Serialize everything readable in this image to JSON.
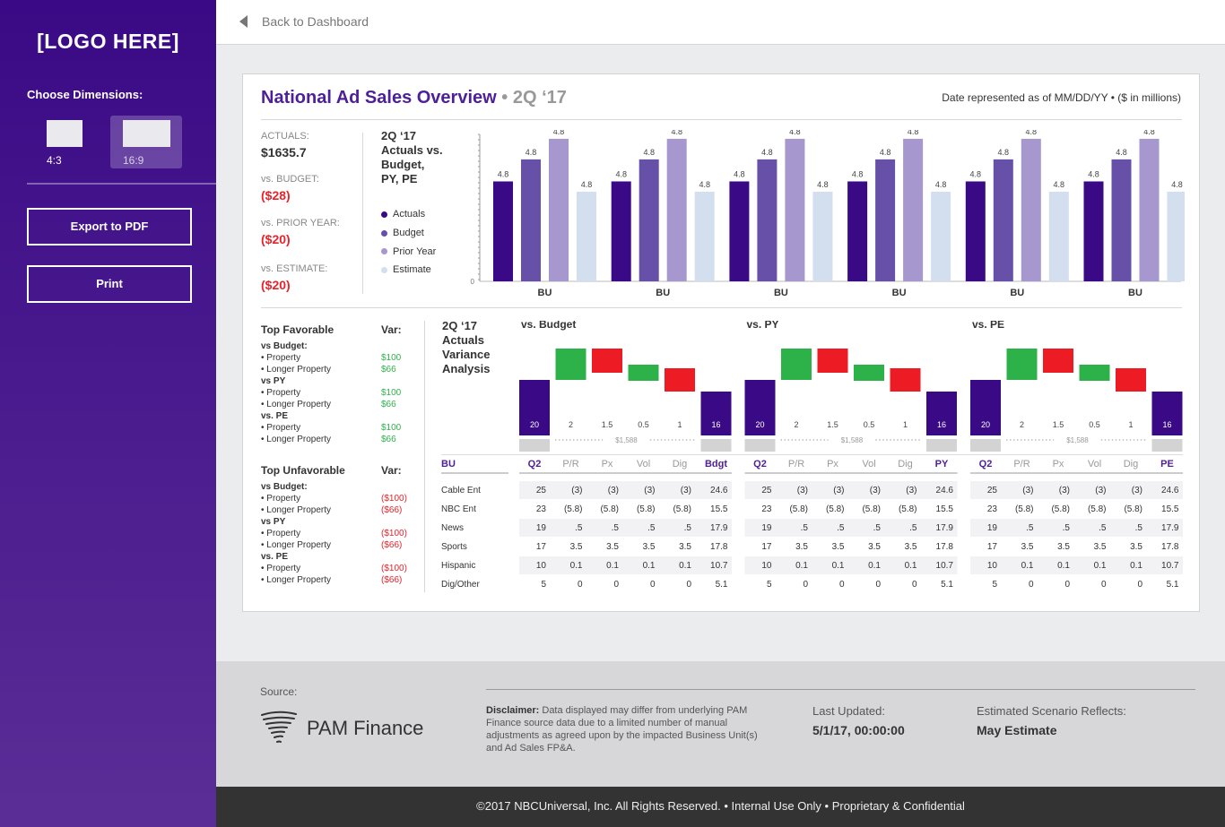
{
  "sidebar": {
    "logo": "[LOGO HERE]",
    "dimensions_label": "Choose Dimensions:",
    "options": [
      {
        "label": "4:3"
      },
      {
        "label": "16:9",
        "selected": true
      }
    ],
    "export_label": "Export to PDF",
    "print_label": "Print"
  },
  "topbar": {
    "back_label": "Back to Dashboard"
  },
  "card": {
    "title": "National Ad Sales Overview",
    "title_separator": " • ",
    "period": "2Q ‘17",
    "date_note": "Date represented as of MM/DD/YY • ($ in millions)",
    "kpis": [
      {
        "label": "ACTUALS:",
        "value": "$1635.7"
      },
      {
        "label": "vs. BUDGET:",
        "value": "($28)"
      },
      {
        "label": "vs. PRIOR YEAR:",
        "value": "($20)"
      },
      {
        "label": "vs. ESTIMATE:",
        "value": "($20)"
      }
    ],
    "chart_title_lines": [
      "2Q ‘17",
      "Actuals vs.",
      "Budget,",
      "PY, PE"
    ],
    "legend": [
      {
        "name": "Actuals",
        "color": "#3a0a86"
      },
      {
        "name": "Budget",
        "color": "#6650a8"
      },
      {
        "name": "Prior Year",
        "color": "#a697cf"
      },
      {
        "name": "Estimate",
        "color": "#d3deee"
      }
    ]
  },
  "chart_data": {
    "type": "bar",
    "categories": [
      "BU",
      "BU",
      "BU",
      "BU",
      "BU",
      "BU"
    ],
    "series": [
      {
        "name": "Actuals",
        "values": [
          4.8,
          4.8,
          4.8,
          4.8,
          4.8,
          4.8
        ]
      },
      {
        "name": "Budget",
        "values": [
          4.8,
          4.8,
          4.8,
          4.8,
          4.8,
          4.8
        ]
      },
      {
        "name": "Prior Year",
        "values": [
          4.8,
          4.8,
          4.8,
          4.8,
          4.8,
          4.8
        ]
      },
      {
        "name": "Estimate",
        "values": [
          4.8,
          4.8,
          4.8,
          4.8,
          4.8,
          4.8
        ]
      }
    ],
    "relative_heights": [
      0.68,
      0.83,
      0.97,
      0.61
    ],
    "y_tick_label": "0",
    "data_label": "4.8",
    "colors": [
      "#3a0a86",
      "#6650a8",
      "#a697cf",
      "#d3deee"
    ]
  },
  "lists": {
    "favorable_title": "Top Favorable",
    "unfavorable_title": "Top Unfavorable",
    "var_label": "Var:",
    "favorable": [
      {
        "group": "vs Budget:",
        "items": [
          {
            "name": "• Property",
            "value": "$100"
          },
          {
            "name": "• Longer Property",
            "value": "$66"
          }
        ]
      },
      {
        "group": "vs PY",
        "items": [
          {
            "name": "• Property",
            "value": "$100"
          },
          {
            "name": "• Longer Property",
            "value": "$66"
          }
        ]
      },
      {
        "group": "vs. PE",
        "items": [
          {
            "name": "• Property",
            "value": "$100"
          },
          {
            "name": "• Longer Property",
            "value": "$66"
          }
        ]
      }
    ],
    "unfavorable": [
      {
        "group": "vs Budget:",
        "items": [
          {
            "name": "• Property",
            "value": "($100)"
          },
          {
            "name": "• Longer Property",
            "value": "($66)"
          }
        ]
      },
      {
        "group": "vs PY",
        "items": [
          {
            "name": "• Property",
            "value": "($100)"
          },
          {
            "name": "• Longer Property",
            "value": "($66)"
          }
        ]
      },
      {
        "group": "vs. PE",
        "items": [
          {
            "name": "• Property",
            "value": "($100)"
          },
          {
            "name": "• Longer Property",
            "value": "($66)"
          }
        ]
      }
    ]
  },
  "variance": {
    "title_lines": [
      "2Q ‘17",
      "Actuals",
      "Variance",
      "Analysis"
    ],
    "baseline_label": "$1,588",
    "panels": [
      {
        "title": "vs. Budget",
        "end_col": "Bdgt"
      },
      {
        "title": "vs. PY",
        "end_col": "PY"
      },
      {
        "title": "vs. PE",
        "end_col": "PE"
      }
    ],
    "bar_labels": [
      "20",
      "2",
      "1.5",
      "0.5",
      "1",
      "16"
    ],
    "waterfall_values": [
      20,
      2,
      1.5,
      -0.5,
      -1,
      16
    ],
    "columns": [
      "Q2",
      "P/R",
      "Px",
      "Vol",
      "Dig"
    ],
    "bu_header": "BU",
    "rows": [
      {
        "bu": "Cable Ent",
        "cells": [
          "25",
          "(3)",
          "(3)",
          "(3)",
          "(3)",
          "24.6"
        ]
      },
      {
        "bu": "NBC Ent",
        "cells": [
          "23",
          "(5.8)",
          "(5.8)",
          "(5.8)",
          "(5.8)",
          "15.5"
        ]
      },
      {
        "bu": "News",
        "cells": [
          "19",
          ".5",
          ".5",
          ".5",
          ".5",
          "17.9"
        ]
      },
      {
        "bu": "Sports",
        "cells": [
          "17",
          "3.5",
          "3.5",
          "3.5",
          "3.5",
          "17.8"
        ]
      },
      {
        "bu": "Hispanic",
        "cells": [
          "10",
          "0.1",
          "0.1",
          "0.1",
          "0.1",
          "10.7"
        ]
      },
      {
        "bu": "Dig/Other",
        "cells": [
          "5",
          "0",
          "0",
          "0",
          "0",
          "5.1"
        ]
      }
    ],
    "colors": {
      "total": "#3a0a86",
      "up": "#2db24a",
      "down": "#ed1c24"
    }
  },
  "footer": {
    "source_label": "Source:",
    "source_name": "PAM Finance",
    "disclaimer_bold": "Disclaimer:",
    "disclaimer_text": " Data displayed may differ from underlying PAM Finance source data due to a limited number of manual adjustments as agreed upon by the impacted Business Unit(s) and Ad Sales FP&A.",
    "last_updated_label": "Last Updated:",
    "last_updated_value": "5/1/17, 00:00:00",
    "scenario_label": "Estimated Scenario Reflects:",
    "scenario_value": "May Estimate",
    "copyright": "©2017 NBCUniversal, Inc. All Rights Reserved.  •  Internal Use Only •  Proprietary & Confidential"
  }
}
